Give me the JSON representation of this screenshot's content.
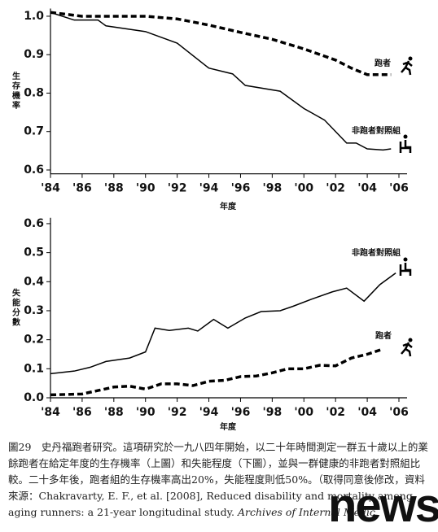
{
  "chart_data": [
    {
      "type": "line",
      "ylabel": "生存機率",
      "xlabel": "年度",
      "xlim": [
        1984,
        2006
      ],
      "ylim": [
        0.59,
        1.02
      ],
      "xticks": [
        {
          "value": 1984,
          "label": "'84"
        },
        {
          "value": 1986,
          "label": "'86"
        },
        {
          "value": 1988,
          "label": "'88"
        },
        {
          "value": 1990,
          "label": "'90"
        },
        {
          "value": 1992,
          "label": "'92"
        },
        {
          "value": 1994,
          "label": "'94"
        },
        {
          "value": 1996,
          "label": "'96"
        },
        {
          "value": 1998,
          "label": "'98"
        },
        {
          "value": 2000,
          "label": "'00"
        },
        {
          "value": 2002,
          "label": "'02"
        },
        {
          "value": 2004,
          "label": "'04"
        },
        {
          "value": 2006,
          "label": "'06"
        }
      ],
      "yticks": [
        0.6,
        0.7,
        0.8,
        0.9,
        {
          "value": 1,
          "label": "1.0"
        }
      ],
      "series": [
        {
          "name": "跑者",
          "color": "#000000",
          "style": "dashed",
          "x": [
            1984,
            1986,
            1988,
            1990,
            1992,
            1994,
            1996,
            1998,
            2000,
            2002,
            2003,
            2004,
            2005.5
          ],
          "values": [
            1.01,
            1.0,
            1.0,
            1.0,
            0.993,
            0.977,
            0.958,
            0.94,
            0.915,
            0.886,
            0.865,
            0.848,
            0.848
          ]
        },
        {
          "name": "非跑者對照組",
          "color": "#000000",
          "style": "solid",
          "x": [
            1984,
            1985.5,
            1987,
            1987.5,
            1990,
            1992,
            1994,
            1995.5,
            1996.3,
            1998.5,
            2000,
            2001.3,
            2002.7,
            2003.3,
            2004,
            2005,
            2005.5
          ],
          "values": [
            1.01,
            0.99,
            0.99,
            0.975,
            0.96,
            0.93,
            0.865,
            0.85,
            0.82,
            0.805,
            0.76,
            0.73,
            0.67,
            0.67,
            0.655,
            0.652,
            0.655
          ]
        }
      ]
    },
    {
      "type": "line",
      "ylabel": "失能分數",
      "xlabel": "年度",
      "xlim": [
        1984,
        2006
      ],
      "ylim": [
        0,
        0.62
      ],
      "xticks": [
        {
          "value": 1984,
          "label": "'84"
        },
        {
          "value": 1986,
          "label": "'86"
        },
        {
          "value": 1988,
          "label": "'88"
        },
        {
          "value": 1990,
          "label": "'90"
        },
        {
          "value": 1992,
          "label": "'92"
        },
        {
          "value": 1994,
          "label": "'94"
        },
        {
          "value": 1996,
          "label": "'96"
        },
        {
          "value": 1998,
          "label": "'98"
        },
        {
          "value": 2000,
          "label": "'00"
        },
        {
          "value": 2002,
          "label": "'02"
        },
        {
          "value": 2004,
          "label": "'04"
        },
        {
          "value": 2006,
          "label": "'06"
        }
      ],
      "yticks": [
        {
          "value": 0,
          "label": "0.0"
        },
        0.1,
        0.2,
        0.3,
        0.4,
        0.5,
        0.6
      ],
      "series": [
        {
          "name": "非跑者對照組",
          "color": "#000000",
          "style": "solid",
          "x": [
            1984,
            1985.5,
            1986.5,
            1987.5,
            1989,
            1990,
            1990.6,
            1991.5,
            1992.7,
            1993.3,
            1994.3,
            1995.2,
            1996.3,
            1997.3,
            1998.5,
            1999.3,
            2000.5,
            2001.8,
            2002.7,
            2003.8,
            2004.8,
            2005.8
          ],
          "values": [
            0.083,
            0.092,
            0.105,
            0.125,
            0.137,
            0.158,
            0.24,
            0.232,
            0.24,
            0.23,
            0.27,
            0.24,
            0.275,
            0.297,
            0.3,
            0.315,
            0.34,
            0.365,
            0.378,
            0.333,
            0.39,
            0.43
          ]
        },
        {
          "name": "跑者",
          "color": "#000000",
          "style": "dashed",
          "x": [
            1984,
            1986,
            1987,
            1988,
            1989,
            1990,
            1991,
            1992,
            1993,
            1994,
            1995,
            1996,
            1997,
            1998,
            1999,
            2000,
            2001,
            2002,
            2003,
            2004,
            2005
          ],
          "values": [
            0.01,
            0.013,
            0.025,
            0.037,
            0.04,
            0.03,
            0.048,
            0.048,
            0.042,
            0.057,
            0.06,
            0.073,
            0.075,
            0.086,
            0.1,
            0.1,
            0.112,
            0.11,
            0.137,
            0.15,
            0.168
          ]
        }
      ]
    }
  ],
  "caption": {
    "text": "圖29　史丹福跑者研究。這項研究於一九八四年開始，以二十年時間測定一群五十歲以上的業餘跑者在給定年度的生存機率（上圖）和失能程度（下圖），並與一群健康的非跑者對照組比較。二十多年後，跑者組的生存機率高出20%，失能程度則低50%。（取得同意後修改，資料來源：Chakravarty, E. F., et al. [2008], Reduced disability and mortality among aging runners: a 21-year longitudinal study.",
    "journal": "Archives of Internal Medic"
  },
  "watermark": "news"
}
